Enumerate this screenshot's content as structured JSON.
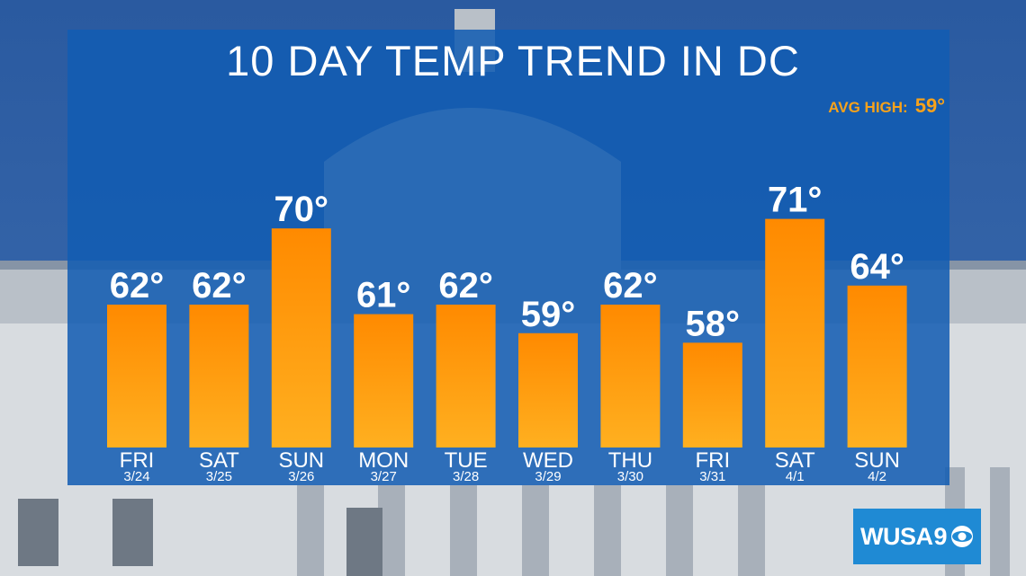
{
  "title": "10 DAY TEMP TREND IN DC",
  "avg_high": {
    "label": "AVG HIGH:",
    "value": "59°"
  },
  "logo": {
    "text": "WUSA",
    "number": "9"
  },
  "colors": {
    "panel": "#125cb2",
    "bar_top": "#ff8a00",
    "bar_bottom": "#ffb020",
    "avg": "#f7a21b",
    "text": "#ffffff",
    "logo_bg": "#1f8ad4"
  },
  "chart_data": {
    "type": "bar",
    "title": "10 DAY TEMP TREND IN DC",
    "categories": [
      "FRI",
      "SAT",
      "SUN",
      "MON",
      "TUE",
      "WED",
      "THU",
      "FRI",
      "SAT",
      "SUN"
    ],
    "dates": [
      "3/24",
      "3/25",
      "3/26",
      "3/27",
      "3/28",
      "3/29",
      "3/30",
      "3/31",
      "4/1",
      "4/2"
    ],
    "values": [
      62,
      62,
      70,
      61,
      62,
      59,
      62,
      58,
      71,
      64
    ],
    "value_labels": [
      "62°",
      "62°",
      "70°",
      "61°",
      "62°",
      "59°",
      "62°",
      "58°",
      "71°",
      "64°"
    ],
    "unit": "°",
    "legend": "none",
    "grid": false
  }
}
